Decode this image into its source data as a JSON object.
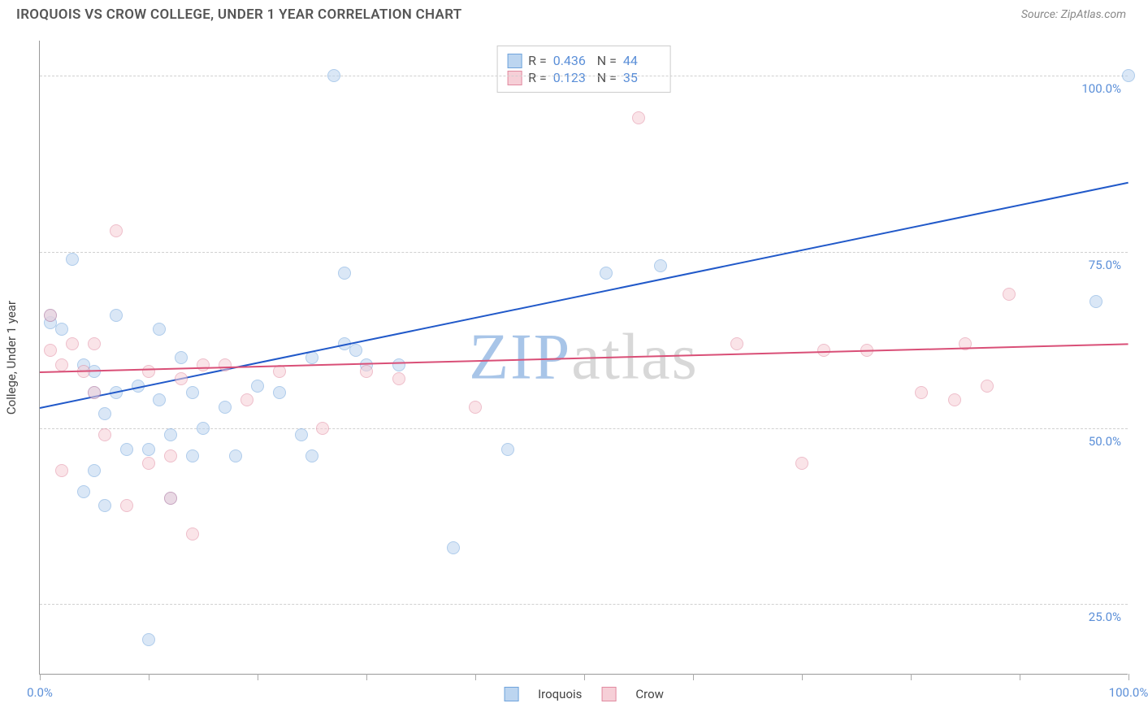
{
  "header": {
    "title": "IROQUOIS VS CROW COLLEGE, UNDER 1 YEAR CORRELATION CHART",
    "source": "Source: ZipAtlas.com"
  },
  "watermark": {
    "text": "ZIPatlas",
    "zip_color": "#a8c5e8",
    "atlas_color": "#d8d8d8"
  },
  "chart": {
    "type": "scatter",
    "background_color": "#ffffff",
    "grid_color": "#d0d0d0",
    "axis_color": "#999999",
    "tick_label_color": "#5b8fd8",
    "tick_label_fontsize": 15,
    "y_axis_title": "College, Under 1 year",
    "y_axis_title_color": "#444444",
    "y_axis_title_fontsize": 15,
    "xlim": [
      0,
      100
    ],
    "ylim": [
      15,
      105
    ],
    "y_grid": [
      25,
      50,
      75,
      100
    ],
    "y_tick_labels": [
      "25.0%",
      "50.0%",
      "75.0%",
      "100.0%"
    ],
    "x_ticks": [
      0,
      10,
      20,
      30,
      40,
      50,
      60,
      70,
      80,
      90,
      100
    ],
    "x_tick_labels": {
      "0": "0.0%",
      "100": "100.0%"
    },
    "point_radius": 8,
    "point_opacity": 0.55,
    "series": [
      {
        "name": "Iroquois",
        "fill": "#bcd5f0",
        "stroke": "#6fa3dc",
        "trend_color": "#2159c9",
        "trend": {
          "x1": 0,
          "y1": 53,
          "x2": 100,
          "y2": 85
        },
        "stats": {
          "R": "0.436",
          "N": "44"
        },
        "points": [
          [
            1,
            65
          ],
          [
            1,
            66
          ],
          [
            2,
            64
          ],
          [
            3,
            74
          ],
          [
            4,
            59
          ],
          [
            4,
            41
          ],
          [
            5,
            44
          ],
          [
            5,
            55
          ],
          [
            5,
            58
          ],
          [
            6,
            52
          ],
          [
            6,
            39
          ],
          [
            7,
            66
          ],
          [
            7,
            55
          ],
          [
            8,
            47
          ],
          [
            9,
            56
          ],
          [
            10,
            47
          ],
          [
            10,
            20
          ],
          [
            11,
            64
          ],
          [
            11,
            54
          ],
          [
            12,
            40
          ],
          [
            12,
            49
          ],
          [
            13,
            60
          ],
          [
            14,
            55
          ],
          [
            14,
            46
          ],
          [
            15,
            50
          ],
          [
            17,
            53
          ],
          [
            18,
            46
          ],
          [
            20,
            56
          ],
          [
            22,
            55
          ],
          [
            24,
            49
          ],
          [
            25,
            60
          ],
          [
            25,
            46
          ],
          [
            27,
            100
          ],
          [
            28,
            72
          ],
          [
            28,
            62
          ],
          [
            29,
            61
          ],
          [
            30,
            59
          ],
          [
            33,
            59
          ],
          [
            38,
            33
          ],
          [
            43,
            47
          ],
          [
            52,
            72
          ],
          [
            57,
            73
          ],
          [
            97,
            68
          ],
          [
            100,
            100
          ]
        ]
      },
      {
        "name": "Crow",
        "fill": "#f6cfd7",
        "stroke": "#e18aa0",
        "trend_color": "#d94f77",
        "trend": {
          "x1": 0,
          "y1": 58,
          "x2": 100,
          "y2": 62
        },
        "stats": {
          "R": "0.123",
          "N": "35"
        },
        "points": [
          [
            1,
            66
          ],
          [
            1,
            61
          ],
          [
            2,
            59
          ],
          [
            2,
            44
          ],
          [
            3,
            62
          ],
          [
            4,
            58
          ],
          [
            5,
            62
          ],
          [
            5,
            55
          ],
          [
            6,
            49
          ],
          [
            7,
            78
          ],
          [
            8,
            39
          ],
          [
            10,
            45
          ],
          [
            10,
            58
          ],
          [
            12,
            46
          ],
          [
            12,
            40
          ],
          [
            13,
            57
          ],
          [
            14,
            35
          ],
          [
            15,
            59
          ],
          [
            17,
            59
          ],
          [
            19,
            54
          ],
          [
            22,
            58
          ],
          [
            26,
            50
          ],
          [
            30,
            58
          ],
          [
            33,
            57
          ],
          [
            40,
            53
          ],
          [
            55,
            94
          ],
          [
            64,
            62
          ],
          [
            70,
            45
          ],
          [
            72,
            61
          ],
          [
            76,
            61
          ],
          [
            81,
            55
          ],
          [
            84,
            54
          ],
          [
            85,
            62
          ],
          [
            87,
            56
          ],
          [
            89,
            69
          ]
        ]
      }
    ],
    "stats_box": {
      "border_color": "#cccccc",
      "label_color": "#555555",
      "value_color": "#5b8fd8"
    },
    "legend_text_color": "#444444"
  }
}
